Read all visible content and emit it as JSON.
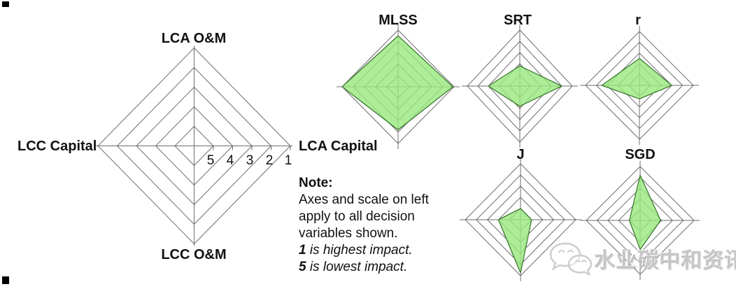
{
  "note": {
    "title": "Note:",
    "lines": [
      "Axes and scale on left",
      "apply to all decision",
      "variables shown."
    ],
    "emphasis": [
      {
        "prefix": "1",
        "rest": " is highest impact."
      },
      {
        "prefix": "5",
        "rest": " is lowest impact."
      }
    ]
  },
  "watermark": {
    "text": "水业碳中和资讯",
    "logo": "wechat-chat-bubbles"
  },
  "colors": {
    "series_fill": "#99E97E",
    "series_stroke": "#3F7A33",
    "grid": "#6E6E6E",
    "text": "#111111",
    "watermark": "#C6C6C6"
  },
  "chart_data": {
    "type": "radar",
    "grid_levels": 5,
    "grid_shape": "diamond",
    "legend_position": "left-template-chart",
    "axes": [
      {
        "id": "lca_om",
        "label": "LCA O&M",
        "position": "top"
      },
      {
        "id": "lca_capital",
        "label": "LCA Capital",
        "position": "right"
      },
      {
        "id": "lcc_om",
        "label": "LCC O&M",
        "position": "bottom"
      },
      {
        "id": "lcc_capital",
        "label": "LCC Capital",
        "position": "left"
      }
    ],
    "scale": {
      "labels": [
        "5",
        "4",
        "3",
        "2",
        "1"
      ],
      "innermost_ring_value": 5,
      "outermost_ring_value": 1
    },
    "series": [
      {
        "name": "MLSS",
        "values": {
          "lca_om": 1.5,
          "lca_capital": 1.1,
          "lcc_om": 2.2,
          "lcc_capital": 1.0
        }
      },
      {
        "name": "SRT",
        "values": {
          "lca_om": 4.2,
          "lca_capital": 2.0,
          "lcc_om": 4.2,
          "lcc_capital": 3.0
        }
      },
      {
        "name": "r",
        "values": {
          "lca_om": 3.5,
          "lca_capital": 3.0,
          "lcc_om": 4.75,
          "lcc_capital": 2.5
        }
      },
      {
        "name": "J",
        "values": {
          "lca_om": 5.0,
          "lca_capital": 5.0,
          "lcc_om": 1.25,
          "lcc_capital": 4.0
        }
      },
      {
        "name": "SGD",
        "values": {
          "lca_om": 1.8,
          "lca_capital": 4.1,
          "lcc_om": 3.3,
          "lcc_capital": 5.0
        }
      }
    ]
  }
}
